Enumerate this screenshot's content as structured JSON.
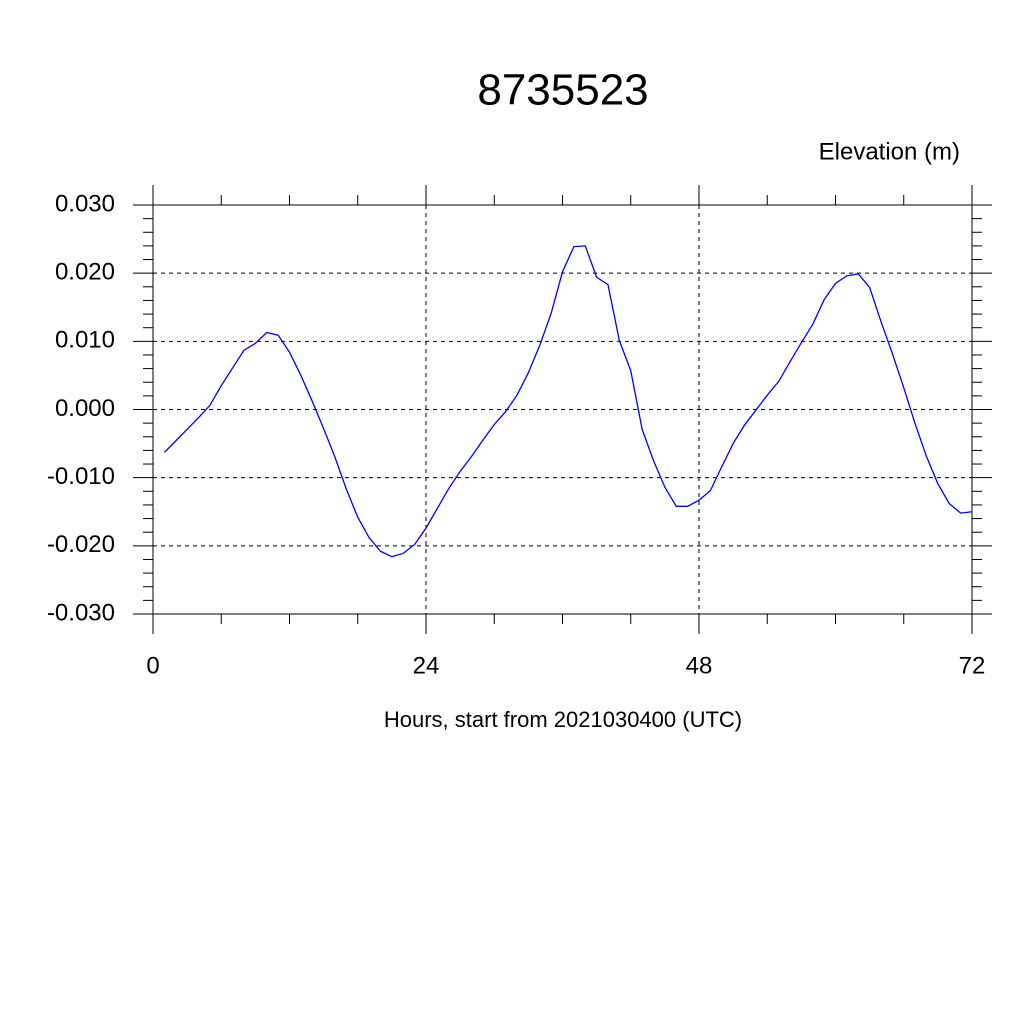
{
  "chart_data": {
    "type": "line",
    "title": "8735523",
    "subtitle": "Elevation (m)",
    "x_label": "Hours, start from 2021030400 (UTC)",
    "x": [
      1,
      2,
      3,
      4,
      5,
      6,
      7,
      8,
      9,
      10,
      11,
      12,
      13,
      14,
      15,
      16,
      17,
      18,
      19,
      20,
      21,
      22,
      23,
      24,
      25,
      26,
      27,
      28,
      29,
      30,
      31,
      32,
      33,
      34,
      35,
      36,
      37,
      38,
      39,
      40,
      41,
      42,
      43,
      44,
      45,
      46,
      47,
      48,
      49,
      50,
      51,
      52,
      53,
      54,
      55,
      56,
      57,
      58,
      59,
      60,
      61,
      62,
      63,
      64,
      65,
      66,
      67,
      68,
      69,
      70,
      71,
      72
    ],
    "series": [
      {
        "color": "#0000ff",
        "values": [
          -0.0063,
          -0.0046,
          -0.0029,
          -0.0012,
          0.0006,
          0.0035,
          0.0061,
          0.0087,
          0.0097,
          0.0113,
          0.0109,
          0.0084,
          0.005,
          0.0012,
          -0.0028,
          -0.007,
          -0.0117,
          -0.0158,
          -0.0188,
          -0.0208,
          -0.0216,
          -0.0211,
          -0.0198,
          -0.0174,
          -0.0145,
          -0.0116,
          -0.0091,
          -0.0069,
          -0.0045,
          -0.0022,
          -0.0003,
          0.0021,
          0.0054,
          0.0094,
          0.0141,
          0.0202,
          0.0239,
          0.024,
          0.0194,
          0.0183,
          0.0101,
          0.0057,
          -0.0029,
          -0.0075,
          -0.0114,
          -0.0142,
          -0.0142,
          -0.0133,
          -0.0119,
          -0.0084,
          -0.005,
          -0.0023,
          -0.0001,
          0.0021,
          0.0041,
          0.007,
          0.0098,
          0.0125,
          0.0161,
          0.0185,
          0.0196,
          0.0199,
          0.0179,
          0.0129,
          0.0082,
          0.0032,
          -0.0021,
          -0.0069,
          -0.0109,
          -0.0138,
          -0.0152,
          -0.015
        ]
      }
    ],
    "xlim": [
      0,
      72
    ],
    "xticks": [
      0,
      24,
      48,
      72
    ],
    "ylim": [
      -0.03,
      0.03
    ],
    "yticks": [
      {
        "value": -0.03,
        "label": "-0.030"
      },
      {
        "value": -0.02,
        "label": "-0.020"
      },
      {
        "value": -0.01,
        "label": "-0.010"
      },
      {
        "value": 0,
        "label": "0.000"
      },
      {
        "value": 0.01,
        "label": "0.010"
      },
      {
        "value": 0.02,
        "label": "0.020"
      },
      {
        "value": 0.03,
        "label": "0.030"
      }
    ],
    "grid": true
  }
}
